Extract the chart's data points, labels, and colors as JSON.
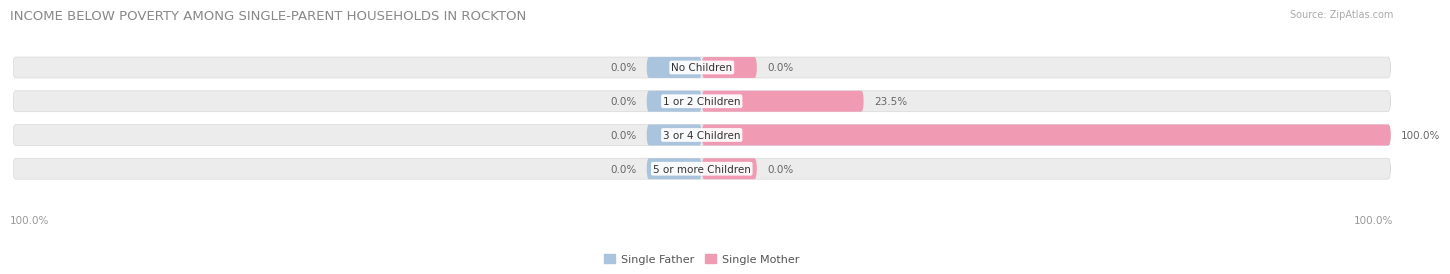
{
  "title": "INCOME BELOW POVERTY AMONG SINGLE-PARENT HOUSEHOLDS IN ROCKTON",
  "source": "Source: ZipAtlas.com",
  "categories": [
    "No Children",
    "1 or 2 Children",
    "3 or 4 Children",
    "5 or more Children"
  ],
  "single_father": [
    0.0,
    0.0,
    0.0,
    0.0
  ],
  "single_mother": [
    0.0,
    23.5,
    100.0,
    0.0
  ],
  "father_color": "#aac4de",
  "mother_color": "#f09ab4",
  "bar_bg_color": "#ececec",
  "bar_height": 0.62,
  "xlim": [
    -100,
    100
  ],
  "title_fontsize": 9.5,
  "label_fontsize": 7.5,
  "tick_fontsize": 7.5,
  "source_fontsize": 7.0,
  "legend_fontsize": 8,
  "fig_bg_color": "#ffffff",
  "axis_label_color": "#999999",
  "cat_label_color": "#333333",
  "value_label_color": "#666666"
}
